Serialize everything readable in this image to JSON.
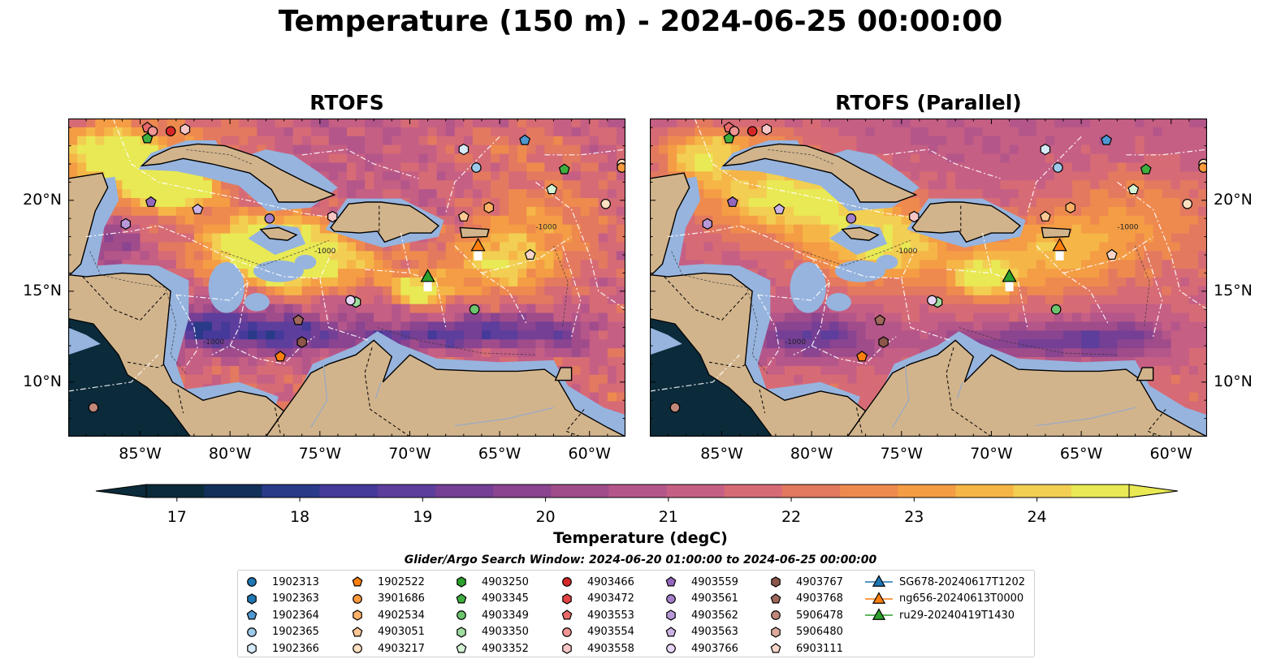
{
  "title": "Temperature (150 m) - 2024-06-25 00:00:00",
  "panels": [
    {
      "title": "RTOFS"
    },
    {
      "title": "RTOFS (Parallel)"
    }
  ],
  "map": {
    "lon_range": [
      -89,
      -58
    ],
    "lat_range": [
      7,
      24.5
    ],
    "lon_ticks": [
      "85°W",
      "80°W",
      "75°W",
      "70°W",
      "65°W",
      "60°W"
    ],
    "lat_ticks": [
      "20°N",
      "15°N",
      "10°N"
    ],
    "contour_label": "-1000"
  },
  "colorbar": {
    "label": "Temperature (degC)",
    "vmin": 16.75,
    "vmax": 24.75,
    "extend": "both",
    "ticks": [
      "17",
      "18",
      "19",
      "20",
      "21",
      "22",
      "23",
      "24"
    ],
    "colors": [
      "#0b2a3a",
      "#12305a",
      "#293a88",
      "#45399a",
      "#5d3e9c",
      "#743f95",
      "#8a4490",
      "#a04c8b",
      "#b4568a",
      "#c65f84",
      "#d66b76",
      "#e3795f",
      "#ef8a4f",
      "#f49d45",
      "#f5b647",
      "#f2cf52",
      "#e8e954"
    ]
  },
  "legend_title": "Glider/Argo Search Window: 2024-06-20 01:00:00 to 2024-06-25 00:00:00",
  "legend": [
    {
      "label": "1902313",
      "marker": "circle",
      "color": "#1f77b4"
    },
    {
      "label": "1902363",
      "marker": "hexagon",
      "color": "#1f77b4"
    },
    {
      "label": "1902364",
      "marker": "pentagon",
      "color": "#4f97d1"
    },
    {
      "label": "1902365",
      "marker": "circle",
      "color": "#9ecae9"
    },
    {
      "label": "1902366",
      "marker": "hexagon",
      "color": "#d6eaf8"
    },
    {
      "label": "1902522",
      "marker": "pentagon",
      "color": "#ff7f0e"
    },
    {
      "label": "3901686",
      "marker": "circle",
      "color": "#ff9a3c"
    },
    {
      "label": "4902534",
      "marker": "hexagon",
      "color": "#ffb267"
    },
    {
      "label": "4903051",
      "marker": "pentagon",
      "color": "#ffc895"
    },
    {
      "label": "4903217",
      "marker": "circle",
      "color": "#ffe0c0"
    },
    {
      "label": "4903250",
      "marker": "hexagon",
      "color": "#2ca02c"
    },
    {
      "label": "4903345",
      "marker": "pentagon",
      "color": "#3fae3f"
    },
    {
      "label": "4903349",
      "marker": "circle",
      "color": "#6cc56c"
    },
    {
      "label": "4903350",
      "marker": "hexagon",
      "color": "#9fdc9f"
    },
    {
      "label": "4903352",
      "marker": "pentagon",
      "color": "#d4f3d4"
    },
    {
      "label": "4903466",
      "marker": "circle",
      "color": "#d62728"
    },
    {
      "label": "4903472",
      "marker": "hexagon",
      "color": "#e04445"
    },
    {
      "label": "4903553",
      "marker": "pentagon",
      "color": "#e8696a"
    },
    {
      "label": "4903554",
      "marker": "circle",
      "color": "#f19494"
    },
    {
      "label": "4903558",
      "marker": "hexagon",
      "color": "#f8c6c6"
    },
    {
      "label": "4903559",
      "marker": "pentagon",
      "color": "#9467bd"
    },
    {
      "label": "4903561",
      "marker": "circle",
      "color": "#a47fcb"
    },
    {
      "label": "4903562",
      "marker": "hexagon",
      "color": "#b898d8"
    },
    {
      "label": "4903563",
      "marker": "pentagon",
      "color": "#ccb3e6"
    },
    {
      "label": "4903766",
      "marker": "circle",
      "color": "#e8d6f6"
    },
    {
      "label": "4903767",
      "marker": "hexagon",
      "color": "#8c564b"
    },
    {
      "label": "4903768",
      "marker": "pentagon",
      "color": "#a0685c"
    },
    {
      "label": "5906478",
      "marker": "circle",
      "color": "#c1887a"
    },
    {
      "label": "5906480",
      "marker": "hexagon",
      "color": "#dcaa9c"
    },
    {
      "label": "6903111",
      "marker": "pentagon",
      "color": "#f7d6c9"
    },
    {
      "label": "SG678-20240617T1202",
      "marker": "triangle",
      "color": "#1f77b4"
    },
    {
      "label": "ng656-20240613T0000",
      "marker": "triangle",
      "color": "#ff7f0e"
    },
    {
      "label": "ru29-20240419T1430",
      "marker": "triangle",
      "color": "#2ca02c"
    }
  ],
  "observations": [
    {
      "id": "4903553",
      "lon": -84.6,
      "lat": 24.0
    },
    {
      "id": "4903466",
      "lon": -83.3,
      "lat": 23.8
    },
    {
      "id": "4903554",
      "lon": -84.3,
      "lat": 23.8
    },
    {
      "id": "4903345",
      "lon": -84.6,
      "lat": 23.4
    },
    {
      "id": "4903558",
      "lon": -82.5,
      "lat": 23.9
    },
    {
      "id": "1902364",
      "lon": -63.6,
      "lat": 23.3
    },
    {
      "id": "1902366",
      "lon": -67.0,
      "lat": 22.8
    },
    {
      "id": "1902365",
      "lon": -66.3,
      "lat": 21.8
    },
    {
      "id": "4903217",
      "lon": -58.2,
      "lat": 22.0
    },
    {
      "id": "3901686",
      "lon": -58.2,
      "lat": 21.8
    },
    {
      "id": "4903345",
      "lon": -61.4,
      "lat": 21.7
    },
    {
      "id": "4903352",
      "lon": -62.1,
      "lat": 20.6
    },
    {
      "id": "4903559",
      "lon": -84.4,
      "lat": 19.9
    },
    {
      "id": "4903563",
      "lon": -81.8,
      "lat": 19.5
    },
    {
      "id": "4903561",
      "lon": -77.8,
      "lat": 19.0
    },
    {
      "id": "4903558",
      "lon": -74.3,
      "lat": 19.1
    },
    {
      "id": "4903562",
      "lon": -85.8,
      "lat": 18.7
    },
    {
      "id": "4902534",
      "lon": -65.6,
      "lat": 19.6
    },
    {
      "id": "4903051",
      "lon": -67.0,
      "lat": 19.1
    },
    {
      "id": "4903217",
      "lon": -59.1,
      "lat": 19.8
    },
    {
      "id": "6903111",
      "lon": -63.3,
      "lat": 17.0
    },
    {
      "id": "4903350",
      "lon": -73.0,
      "lat": 14.4
    },
    {
      "id": "4903766",
      "lon": -73.3,
      "lat": 14.5
    },
    {
      "id": "4903349",
      "lon": -66.4,
      "lat": 14.0
    },
    {
      "id": "4903768",
      "lon": -76.2,
      "lat": 13.4
    },
    {
      "id": "4903767",
      "lon": -76.0,
      "lat": 12.2
    },
    {
      "id": "1902522",
      "lon": -77.2,
      "lat": 11.4
    },
    {
      "id": "5906478",
      "lon": -87.6,
      "lat": 8.6
    }
  ],
  "gliders": [
    {
      "id": "ng656-20240613T0000",
      "lon": -66.2,
      "lat": 17.5
    },
    {
      "id": "ru29-20240419T1430",
      "lon": -69.0,
      "lat": 15.8
    }
  ]
}
